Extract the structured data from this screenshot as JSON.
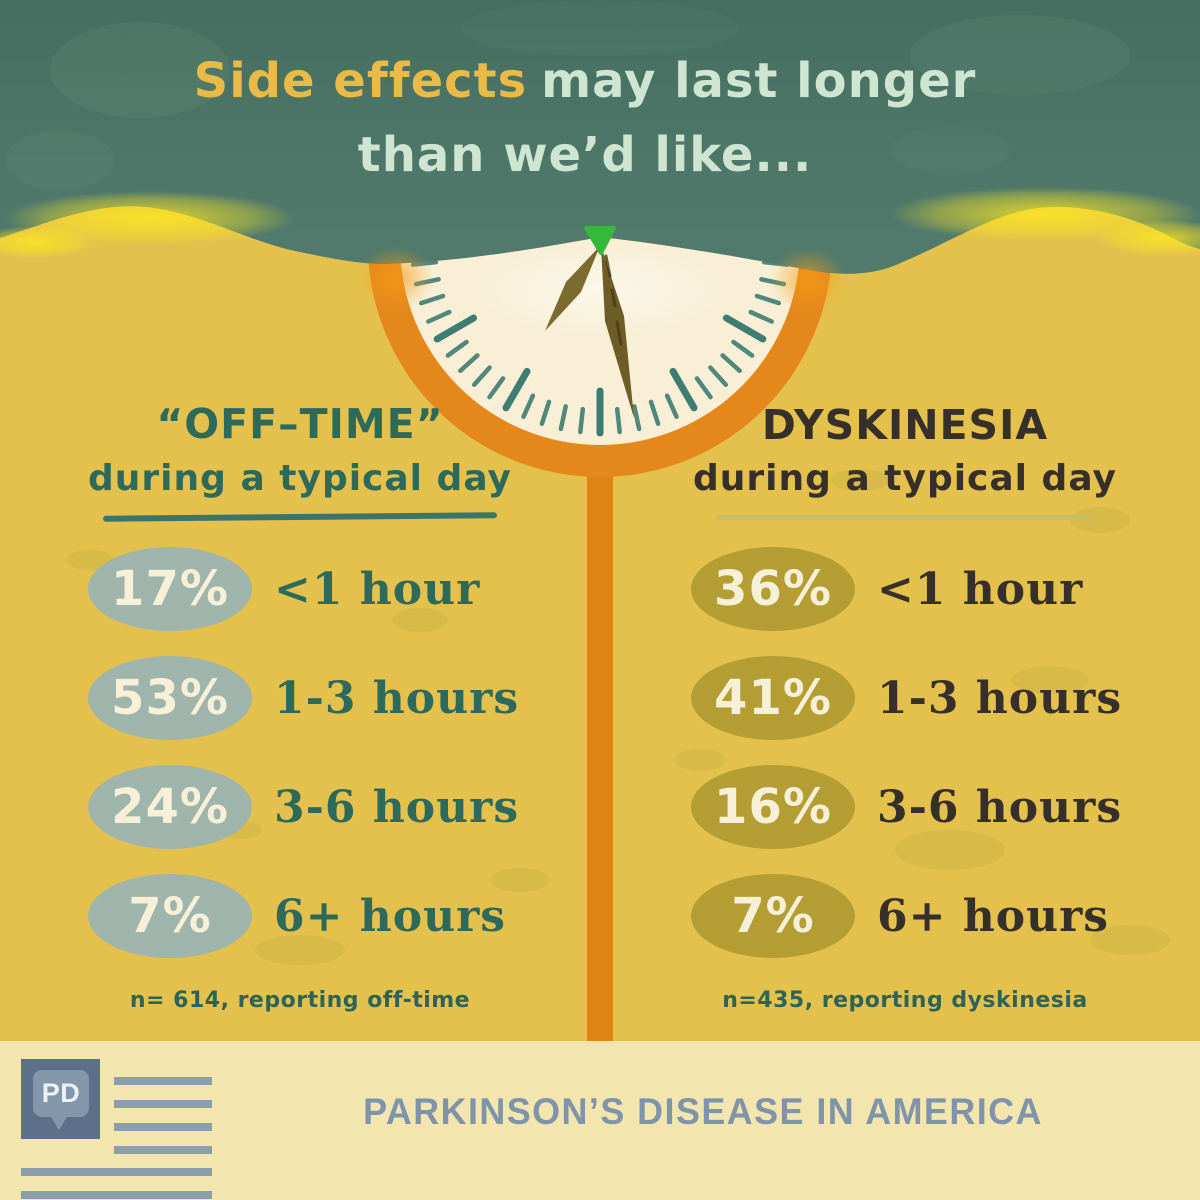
{
  "title": {
    "highlight": "Side effects",
    "rest": "may last longer",
    "line2": "than we’d like..."
  },
  "icons": {
    "clock": "half-clock-icon",
    "logo": "pd-flag-logo"
  },
  "columns": [
    {
      "header": "“OFF–TIME”",
      "subheader": "during a typical day",
      "rows": [
        {
          "pct": "17%",
          "label": "<1 hour"
        },
        {
          "pct": "53%",
          "label": "1-3 hours"
        },
        {
          "pct": "24%",
          "label": "3-6 hours"
        },
        {
          "pct": "7%",
          "label": "6+ hours"
        }
      ],
      "footnote": "n= 614, reporting off-time"
    },
    {
      "header": "DYSKINESIA",
      "subheader": "during a typical day",
      "rows": [
        {
          "pct": "36%",
          "label": "<1 hour"
        },
        {
          "pct": "41%",
          "label": "1-3 hours"
        },
        {
          "pct": "16%",
          "label": "3-6 hours"
        },
        {
          "pct": "7%",
          "label": "6+ hours"
        }
      ],
      "footnote": "n=435, reporting dyskinesia"
    }
  ],
  "footer": {
    "brand": "PARKINSON’S DISEASE IN AMERICA",
    "logo_monogram": "PD"
  },
  "chart_data": [
    {
      "type": "bar",
      "title": "“OFF–TIME” during a typical day",
      "categories": [
        "<1 hour",
        "1-3 hours",
        "3-6 hours",
        "6+ hours"
      ],
      "values": [
        17,
        53,
        24,
        7
      ],
      "unit": "percent",
      "sample_note": "n= 614, reporting off-time"
    },
    {
      "type": "bar",
      "title": "DYSKINESIA during a typical day",
      "categories": [
        "<1 hour",
        "1-3 hours",
        "3-6 hours",
        "6+ hours"
      ],
      "values": [
        36,
        41,
        16,
        7
      ],
      "unit": "percent",
      "sample_note": "n=435, reporting dyskinesia"
    }
  ],
  "colors": {
    "teal_background": "#4d7568",
    "yellow_background": "#e3c14c",
    "orange_clock": "#e5881b",
    "cream_face": "#f8efd6",
    "left_oval": "#9fb4aa",
    "right_oval": "#b49d33",
    "left_ink": "#2e6a5b",
    "right_ink": "#37302a",
    "title_gold": "#eaba46",
    "title_mint": "#cde5d1",
    "footnote_teal": "#2c6459",
    "footer_background": "#f3e5ae",
    "footer_blue": "#7f94ab",
    "pivot_green": "#35b93a"
  }
}
